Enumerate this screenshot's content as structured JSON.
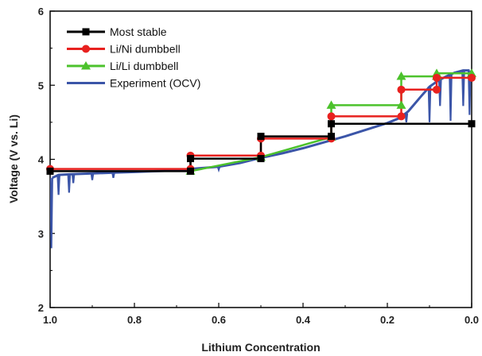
{
  "chart_data": {
    "type": "line",
    "title": "",
    "xlabel": "Lithium Concentration",
    "ylabel": "Voltage (V vs. Li)",
    "xlim": [
      1.0,
      0.0
    ],
    "ylim": [
      2,
      6
    ],
    "x_ticks": [
      "1.0",
      "0.8",
      "0.6",
      "0.4",
      "0.2",
      "0.0"
    ],
    "y_ticks": [
      "2",
      "3",
      "4",
      "5",
      "6"
    ],
    "grid": false,
    "legend_position": "top-left",
    "series": [
      {
        "name": "Most stable",
        "color": "#000000",
        "marker": "square",
        "step_points": [
          [
            1.0,
            3.84
          ],
          [
            0.667,
            3.84
          ],
          [
            0.667,
            4.01
          ],
          [
            0.5,
            4.01
          ],
          [
            0.5,
            4.31
          ],
          [
            0.333,
            4.31
          ],
          [
            0.333,
            4.48
          ],
          [
            0.0,
            4.48
          ]
        ]
      },
      {
        "name": "Li/Ni dumbbell",
        "color": "#e8211f",
        "marker": "circle",
        "step_points": [
          [
            1.0,
            3.87
          ],
          [
            0.667,
            3.87
          ],
          [
            0.667,
            4.05
          ],
          [
            0.5,
            4.05
          ],
          [
            0.5,
            4.28
          ],
          [
            0.333,
            4.28
          ],
          [
            0.333,
            4.58
          ],
          [
            0.167,
            4.58
          ],
          [
            0.167,
            4.94
          ],
          [
            0.083,
            4.94
          ],
          [
            0.083,
            5.1
          ],
          [
            0.0,
            5.1
          ]
        ]
      },
      {
        "name": "Li/Li dumbbell",
        "color": "#4cc22c",
        "marker": "triangle",
        "step_points": [
          [
            0.667,
            3.84
          ],
          [
            0.5,
            4.03
          ],
          [
            0.333,
            4.3
          ],
          [
            0.333,
            4.73
          ],
          [
            0.167,
            4.73
          ],
          [
            0.167,
            5.12
          ],
          [
            0.083,
            5.12
          ],
          [
            0.083,
            5.16
          ],
          [
            0.0,
            5.16
          ]
        ]
      },
      {
        "name": "Experiment (OCV)",
        "color": "#3b55a8",
        "marker": "none",
        "x": [
          0.995,
          0.98,
          0.95,
          0.9,
          0.85,
          0.8,
          0.75,
          0.7,
          0.667,
          0.6,
          0.55,
          0.5,
          0.45,
          0.4,
          0.35,
          0.3,
          0.25,
          0.2,
          0.17,
          0.15,
          0.12,
          0.1,
          0.08,
          0.06,
          0.04,
          0.02,
          0.005
        ],
        "y": [
          3.75,
          3.79,
          3.8,
          3.81,
          3.82,
          3.83,
          3.84,
          3.85,
          3.87,
          3.9,
          3.95,
          4.02,
          4.08,
          4.15,
          4.23,
          4.31,
          4.4,
          4.49,
          4.56,
          4.65,
          4.85,
          4.98,
          5.06,
          5.12,
          5.17,
          5.2,
          5.2
        ],
        "spikes": [
          [
            0.997,
            3.75,
            2.8
          ],
          [
            0.98,
            3.79,
            3.52
          ],
          [
            0.955,
            3.8,
            3.55
          ],
          [
            0.945,
            3.81,
            3.68
          ],
          [
            0.9,
            3.81,
            3.72
          ],
          [
            0.85,
            3.82,
            3.75
          ],
          [
            0.6,
            3.9,
            3.86
          ],
          [
            0.155,
            4.62,
            4.5
          ],
          [
            0.1,
            4.98,
            4.5
          ],
          [
            0.075,
            5.07,
            4.72
          ],
          [
            0.05,
            5.14,
            4.52
          ],
          [
            0.02,
            5.19,
            4.72
          ],
          [
            0.005,
            5.2,
            4.6
          ]
        ]
      }
    ]
  }
}
